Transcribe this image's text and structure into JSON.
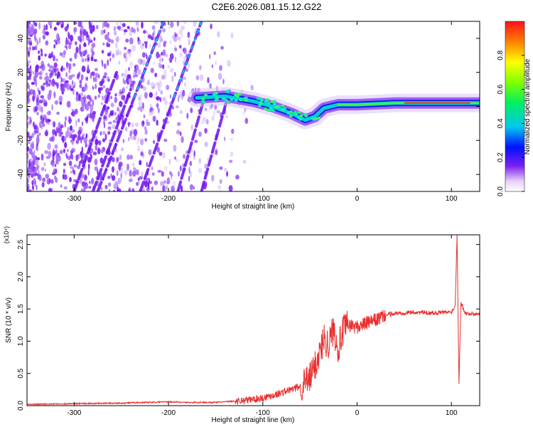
{
  "title": "C2E6.2026.081.15.12.G22",
  "chart_data": [
    {
      "type": "heatmap",
      "title": "C2E6.2026.081.15.12.G22",
      "xlabel": "Height of straight line (km)",
      "ylabel": "Frequency (Hz)",
      "xlim": [
        -350,
        130
      ],
      "ylim": [
        -50,
        50
      ],
      "xticks": [
        -300,
        -200,
        -100,
        0,
        100
      ],
      "yticks": [
        -40,
        -20,
        0,
        20,
        40
      ],
      "colorbar": {
        "label": "Normalized spectral amplitude",
        "range": [
          0,
          1
        ],
        "ticks": [
          0.0,
          0.2,
          0.4,
          0.6,
          0.8
        ]
      },
      "features": {
        "main_trace": [
          [
            -170,
            5
          ],
          [
            -140,
            6
          ],
          [
            -110,
            3
          ],
          [
            -90,
            0
          ],
          [
            -70,
            -4
          ],
          [
            -55,
            -8
          ],
          [
            -45,
            -6
          ],
          [
            -35,
            -1
          ],
          [
            -20,
            1
          ],
          [
            0,
            1
          ],
          [
            40,
            2
          ],
          [
            80,
            2
          ],
          [
            130,
            2
          ]
        ],
        "diagonal_streaks": [
          {
            "x": [
              -275,
              -205
            ],
            "y": [
              -50,
              50
            ]
          },
          {
            "x": [
              -230,
              -165
            ],
            "y": [
              -50,
              50
            ]
          },
          {
            "x": [
              -190,
              -162
            ],
            "y": [
              -50,
              5
            ]
          },
          {
            "x": [
              -165,
              -135
            ],
            "y": [
              -50,
              10
            ]
          },
          {
            "x": [
              -300,
              -255
            ],
            "y": [
              -50,
              20
            ]
          },
          {
            "x": [
              -280,
              -240
            ],
            "y": [
              -50,
              10
            ]
          }
        ]
      }
    },
    {
      "type": "line",
      "xlabel": "Height of straight line (km)",
      "ylabel": "SNR (10 * v/v)",
      "multiplier": "(x10⁴)",
      "xlim": [
        -350,
        130
      ],
      "ylim": [
        0,
        2.65
      ],
      "xticks": [
        -300,
        -200,
        -100,
        0,
        100
      ],
      "yticks": [
        0.0,
        0.5,
        1.0,
        1.5,
        2.0,
        2.5
      ],
      "color": "#e83030",
      "series": [
        {
          "name": "SNR",
          "x": [
            -350,
            -300,
            -250,
            -200,
            -180,
            -150,
            -120,
            -100,
            -80,
            -70,
            -60,
            -50,
            -40,
            -35,
            -30,
            -25,
            -20,
            -15,
            -10,
            0,
            10,
            20,
            30,
            40,
            60,
            80,
            100,
            104,
            106,
            108,
            110,
            115,
            130
          ],
          "y": [
            0.02,
            0.03,
            0.04,
            0.06,
            0.05,
            0.05,
            0.08,
            0.12,
            0.2,
            0.25,
            0.3,
            0.42,
            0.8,
            1.05,
            0.95,
            1.2,
            0.9,
            1.15,
            1.25,
            1.22,
            1.28,
            1.33,
            1.4,
            1.43,
            1.45,
            1.44,
            1.45,
            1.55,
            2.65,
            0.3,
            1.6,
            1.43,
            1.42
          ]
        }
      ]
    }
  ]
}
